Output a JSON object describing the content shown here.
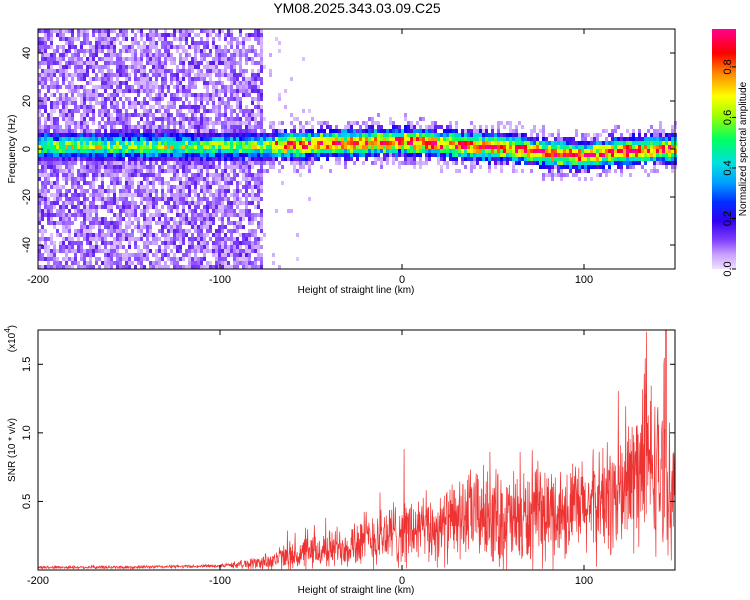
{
  "title": "YM08.2025.343.03.09.C25",
  "chart_data": [
    {
      "type": "heatmap",
      "xlabel": "Height of straight line (km)",
      "ylabel": "Frequency (Hz)",
      "xlim": [
        -200,
        150
      ],
      "ylim": [
        -50,
        50
      ],
      "x_ticks": [
        -200,
        -100,
        0,
        100
      ],
      "y_ticks": [
        -40,
        -20,
        0,
        20,
        40
      ],
      "colorbar": {
        "label": "Normalized spectral amplitude",
        "range": [
          0,
          0.95
        ],
        "ticks": [
          0.0,
          0.2,
          0.4,
          0.6,
          0.8
        ],
        "colormap": [
          "#f0e0ff",
          "#c8a0ff",
          "#8040ff",
          "#5010e0",
          "#0000ff",
          "#00a0ff",
          "#00e0e0",
          "#00ff60",
          "#c0ff00",
          "#ffff00",
          "#ff8000",
          "#ff0000",
          "#ff00a0"
        ]
      },
      "regions": [
        {
          "x_range": [
            -200,
            -78
          ],
          "freq_range": [
            -50,
            50
          ],
          "amplitude": "low, scattered noise"
        },
        {
          "x_range": [
            -78,
            150
          ],
          "freq_range": [
            -8,
            8
          ],
          "amplitude": "high, concentrated band near 0 Hz"
        }
      ],
      "band_center_hz": [
        {
          "x": -80,
          "f": 2
        },
        {
          "x": -40,
          "f": 3
        },
        {
          "x": 0,
          "f": 4
        },
        {
          "x": 20,
          "f": 3
        },
        {
          "x": 40,
          "f": 2
        },
        {
          "x": 60,
          "f": 1
        },
        {
          "x": 80,
          "f": -1
        },
        {
          "x": 100,
          "f": -2
        },
        {
          "x": 120,
          "f": 0
        },
        {
          "x": 150,
          "f": 1
        }
      ]
    },
    {
      "type": "line",
      "xlabel": "Height of straight line (km)",
      "ylabel": "SNR (10 * v/v)",
      "y_multiplier": "(x10",
      "y_multiplier_exp": "4",
      "xlim": [
        -200,
        150
      ],
      "ylim": [
        0,
        1.75
      ],
      "x_ticks": [
        -200,
        -100,
        0,
        100
      ],
      "y_ticks": [
        0.5,
        1.0,
        1.5
      ],
      "series": [
        {
          "color": "#ee3333",
          "envelope": [
            {
              "x": -200,
              "mean": 0.02,
              "spread": 0.01
            },
            {
              "x": -150,
              "mean": 0.02,
              "spread": 0.01
            },
            {
              "x": -100,
              "mean": 0.03,
              "spread": 0.01
            },
            {
              "x": -80,
              "mean": 0.05,
              "spread": 0.04
            },
            {
              "x": -60,
              "mean": 0.1,
              "spread": 0.1
            },
            {
              "x": -40,
              "mean": 0.15,
              "spread": 0.12
            },
            {
              "x": -20,
              "mean": 0.22,
              "spread": 0.18
            },
            {
              "x": 0,
              "mean": 0.28,
              "spread": 0.22
            },
            {
              "x": 20,
              "mean": 0.3,
              "spread": 0.22
            },
            {
              "x": 40,
              "mean": 0.42,
              "spread": 0.28
            },
            {
              "x": 60,
              "mean": 0.35,
              "spread": 0.32
            },
            {
              "x": 80,
              "mean": 0.4,
              "spread": 0.3
            },
            {
              "x": 100,
              "mean": 0.45,
              "spread": 0.3
            },
            {
              "x": 120,
              "mean": 0.55,
              "spread": 0.4
            },
            {
              "x": 135,
              "mean": 0.8,
              "spread": 0.55
            },
            {
              "x": 150,
              "mean": 0.55,
              "spread": 0.35
            }
          ],
          "peak": {
            "x": 145,
            "y": 1.75
          }
        }
      ]
    }
  ]
}
